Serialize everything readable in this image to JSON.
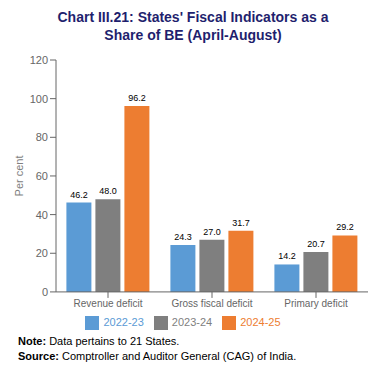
{
  "chart_data": {
    "type": "bar",
    "title": "Chart III.21: States' Fiscal Indicators as a\nShare of BE (April-August)",
    "categories": [
      "Revenue deficit",
      "Gross fiscal deficit",
      "Primary deficit"
    ],
    "series": [
      {
        "name": "2022-23",
        "color": "#5b9bd5",
        "values": [
          46.2,
          24.3,
          14.2
        ],
        "value_labels": [
          "46.2",
          "24.3",
          "14.2"
        ]
      },
      {
        "name": "2023-24",
        "color": "#7f7f7f",
        "values": [
          48.0,
          27.0,
          20.7
        ],
        "value_labels": [
          "48.0",
          "27.0",
          "20.7"
        ]
      },
      {
        "name": "2024-25",
        "color": "#ed7d31",
        "values": [
          96.2,
          31.7,
          29.2
        ],
        "value_labels": [
          "96.2",
          "31.7",
          "29.2"
        ]
      }
    ],
    "y_label": "Per cent",
    "ylim": [
      0,
      120
    ],
    "yticks": [
      0,
      20,
      40,
      60,
      80,
      100,
      120
    ],
    "grid": false,
    "legend": "bottom",
    "data_labels": true,
    "annotations": [
      "Note: Data pertains to 21 States.",
      "Source: Comptroller and Auditor General (CAG) of India."
    ]
  }
}
